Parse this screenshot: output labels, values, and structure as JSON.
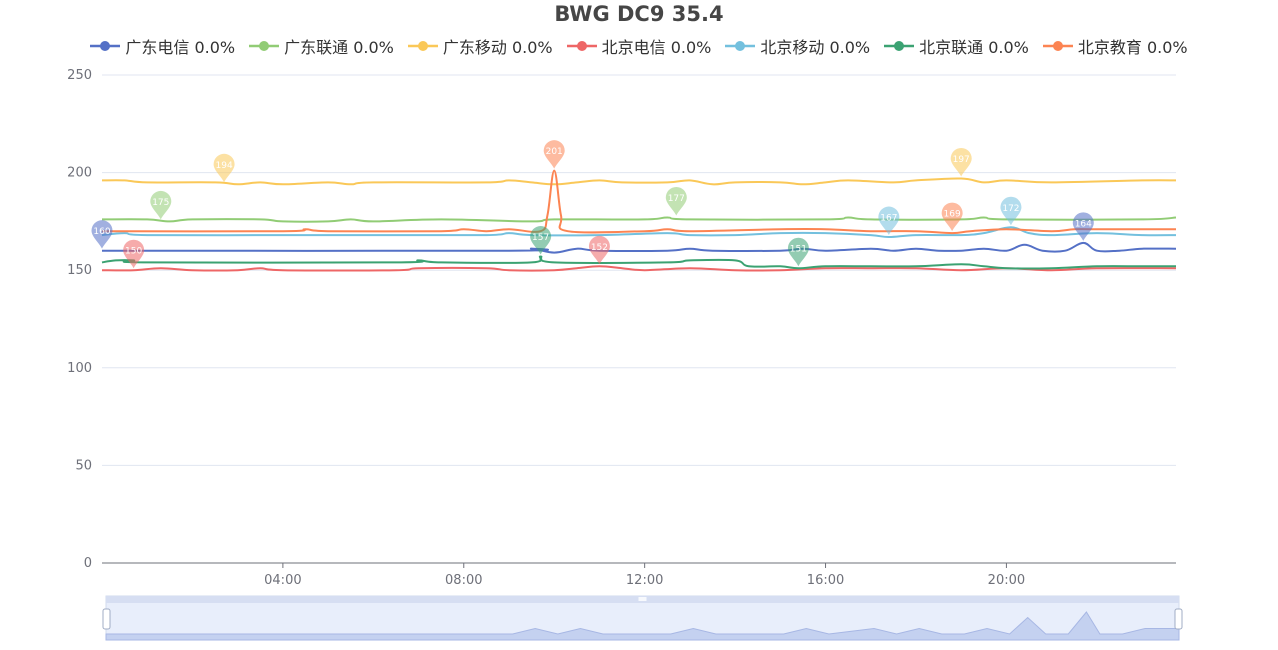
{
  "chart_data": {
    "type": "line",
    "title": "BWG DC9 35.4",
    "ylim": [
      0,
      250
    ],
    "y_ticks": [
      0,
      50,
      100,
      150,
      200,
      250
    ],
    "x_range_hours": [
      0,
      23.75
    ],
    "x_ticks": [
      "04:00",
      "08:00",
      "12:00",
      "16:00",
      "20:00"
    ],
    "grid": true,
    "legend_position": "top-center",
    "has_data_zoom_slider": true,
    "series": [
      {
        "name": "广东电信 0.0%",
        "color": "#5470c6",
        "baseline": 160,
        "points": [
          [
            0,
            160
          ],
          [
            9.0,
            160
          ],
          [
            9.5,
            161
          ],
          [
            10.0,
            159
          ],
          [
            10.5,
            161
          ],
          [
            11.0,
            160
          ],
          [
            12.5,
            160
          ],
          [
            13.0,
            161
          ],
          [
            13.5,
            160
          ],
          [
            15.0,
            160
          ],
          [
            15.5,
            161
          ],
          [
            16.0,
            160
          ],
          [
            17.0,
            161
          ],
          [
            17.5,
            160
          ],
          [
            18.0,
            161
          ],
          [
            18.5,
            160
          ],
          [
            19.0,
            160
          ],
          [
            19.5,
            161
          ],
          [
            20.0,
            160
          ],
          [
            20.4,
            163
          ],
          [
            20.8,
            160
          ],
          [
            21.3,
            160
          ],
          [
            21.7,
            164
          ],
          [
            22.0,
            160
          ],
          [
            22.5,
            160
          ],
          [
            23.0,
            161
          ],
          [
            23.75,
            161
          ]
        ],
        "markers": [
          {
            "x": 0,
            "y": 160,
            "label": "160"
          },
          {
            "x": 21.7,
            "y": 164,
            "label": "164"
          }
        ]
      },
      {
        "name": "广东联通 0.0%",
        "color": "#91cc75",
        "baseline": 176,
        "points": [
          [
            0,
            176
          ],
          [
            1.0,
            176
          ],
          [
            1.5,
            175
          ],
          [
            2.0,
            176
          ],
          [
            3.5,
            176
          ],
          [
            4.0,
            175
          ],
          [
            5.0,
            175
          ],
          [
            5.5,
            176
          ],
          [
            6.0,
            175
          ],
          [
            7.5,
            176
          ],
          [
            9.5,
            175
          ],
          [
            10.0,
            176
          ],
          [
            12.0,
            176
          ],
          [
            12.5,
            177
          ],
          [
            13.0,
            176
          ],
          [
            16.0,
            176
          ],
          [
            16.5,
            177
          ],
          [
            17.0,
            176
          ],
          [
            19.0,
            176
          ],
          [
            19.5,
            177
          ],
          [
            20.0,
            176
          ],
          [
            23.0,
            176
          ],
          [
            23.75,
            177
          ]
        ],
        "markers": [
          {
            "x": 1.3,
            "y": 175,
            "label": "175"
          },
          {
            "x": 12.7,
            "y": 177,
            "label": "177"
          }
        ]
      },
      {
        "name": "广东移动 0.0%",
        "color": "#fac858",
        "baseline": 195,
        "points": [
          [
            0,
            196
          ],
          [
            0.5,
            196
          ],
          [
            1.0,
            195
          ],
          [
            2.5,
            195
          ],
          [
            3.0,
            194
          ],
          [
            3.5,
            195
          ],
          [
            4.0,
            194
          ],
          [
            5.0,
            195
          ],
          [
            5.5,
            194
          ],
          [
            6.0,
            195
          ],
          [
            8.5,
            195
          ],
          [
            9.0,
            196
          ],
          [
            9.5,
            195
          ],
          [
            10.0,
            194
          ],
          [
            10.5,
            195
          ],
          [
            11.0,
            196
          ],
          [
            11.5,
            195
          ],
          [
            12.5,
            195
          ],
          [
            13.0,
            196
          ],
          [
            13.5,
            194
          ],
          [
            14.0,
            195
          ],
          [
            15.0,
            195
          ],
          [
            15.5,
            194
          ],
          [
            16.0,
            195
          ],
          [
            16.5,
            196
          ],
          [
            17.5,
            195
          ],
          [
            18.0,
            196
          ],
          [
            19.0,
            197
          ],
          [
            19.5,
            195
          ],
          [
            20.0,
            196
          ],
          [
            21.0,
            195
          ],
          [
            23.0,
            196
          ],
          [
            23.75,
            196
          ]
        ],
        "markers": [
          {
            "x": 2.7,
            "y": 194,
            "label": "194"
          },
          {
            "x": 19.0,
            "y": 197,
            "label": "197"
          }
        ]
      },
      {
        "name": "北京电信  0.0%",
        "color": "#ee6666",
        "baseline": 150,
        "points": [
          [
            0,
            150
          ],
          [
            0.7,
            150
          ],
          [
            1.3,
            151
          ],
          [
            2.0,
            150
          ],
          [
            3.0,
            150
          ],
          [
            3.5,
            151
          ],
          [
            4.0,
            150
          ],
          [
            6.5,
            150
          ],
          [
            7.0,
            151
          ],
          [
            8.5,
            151
          ],
          [
            9.0,
            150
          ],
          [
            10.0,
            150
          ],
          [
            10.5,
            151
          ],
          [
            11.0,
            152
          ],
          [
            11.5,
            151
          ],
          [
            12.0,
            150
          ],
          [
            13.0,
            151
          ],
          [
            14.0,
            150
          ],
          [
            15.0,
            150
          ],
          [
            16.0,
            151
          ],
          [
            17.0,
            151
          ],
          [
            18.0,
            151
          ],
          [
            19.0,
            150
          ],
          [
            20.0,
            151
          ],
          [
            21.0,
            150
          ],
          [
            22.0,
            151
          ],
          [
            23.75,
            151
          ]
        ],
        "markers": [
          {
            "x": 0.7,
            "y": 150,
            "label": "150"
          },
          {
            "x": 11.0,
            "y": 152,
            "label": "152"
          }
        ]
      },
      {
        "name": "北京移动 0.0%",
        "color": "#73c0de",
        "baseline": 168,
        "points": [
          [
            0,
            168
          ],
          [
            0.5,
            169
          ],
          [
            1.0,
            168
          ],
          [
            4.0,
            168
          ],
          [
            6.0,
            168
          ],
          [
            8.5,
            168
          ],
          [
            9.0,
            169
          ],
          [
            9.5,
            168
          ],
          [
            11.0,
            168
          ],
          [
            12.5,
            169
          ],
          [
            13.0,
            168
          ],
          [
            14.0,
            168
          ],
          [
            15.0,
            169
          ],
          [
            16.0,
            169
          ],
          [
            17.0,
            168
          ],
          [
            17.4,
            167
          ],
          [
            18.0,
            168
          ],
          [
            19.0,
            168
          ],
          [
            19.5,
            169
          ],
          [
            20.1,
            172
          ],
          [
            20.5,
            169
          ],
          [
            21.0,
            168
          ],
          [
            22.0,
            169
          ],
          [
            23.0,
            168
          ],
          [
            23.75,
            168
          ]
        ],
        "markers": [
          {
            "x": 17.4,
            "y": 167,
            "label": "167"
          },
          {
            "x": 20.1,
            "y": 172,
            "label": "172"
          }
        ]
      },
      {
        "name": "北京联通  0.0%",
        "color": "#3ba272",
        "baseline": 154,
        "points": [
          [
            0,
            154
          ],
          [
            0.3,
            155
          ],
          [
            0.7,
            155
          ],
          [
            1.0,
            154
          ],
          [
            6.5,
            154
          ],
          [
            7.0,
            155
          ],
          [
            7.5,
            154
          ],
          [
            9.5,
            154
          ],
          [
            9.7,
            157
          ],
          [
            10.0,
            154
          ],
          [
            12.5,
            154
          ],
          [
            13.0,
            155
          ],
          [
            14.0,
            155
          ],
          [
            14.3,
            152
          ],
          [
            15.0,
            152
          ],
          [
            15.4,
            151
          ],
          [
            16.0,
            152
          ],
          [
            17.0,
            152
          ],
          [
            18.0,
            152
          ],
          [
            19.0,
            153
          ],
          [
            19.5,
            152
          ],
          [
            20.0,
            151
          ],
          [
            21.0,
            151
          ],
          [
            22.0,
            152
          ],
          [
            23.0,
            152
          ],
          [
            23.75,
            152
          ]
        ],
        "markers": [
          {
            "x": 9.7,
            "y": 157,
            "label": "157"
          },
          {
            "x": 15.4,
            "y": 151,
            "label": "151"
          }
        ]
      },
      {
        "name": "北京教育 0.0%",
        "color": "#fc8452",
        "baseline": 170,
        "points": [
          [
            0,
            170
          ],
          [
            4.0,
            170
          ],
          [
            4.5,
            171
          ],
          [
            5.0,
            170
          ],
          [
            7.5,
            170
          ],
          [
            8.0,
            171
          ],
          [
            8.5,
            170
          ],
          [
            9.0,
            171
          ],
          [
            9.7,
            170
          ],
          [
            9.85,
            178
          ],
          [
            10.0,
            201
          ],
          [
            10.15,
            178
          ],
          [
            10.3,
            170
          ],
          [
            12.0,
            170
          ],
          [
            12.5,
            171
          ],
          [
            13.0,
            170
          ],
          [
            15.0,
            171
          ],
          [
            16.0,
            171
          ],
          [
            17.0,
            170
          ],
          [
            18.0,
            170
          ],
          [
            18.8,
            169
          ],
          [
            19.2,
            170
          ],
          [
            20.0,
            171
          ],
          [
            21.0,
            170
          ],
          [
            21.5,
            171
          ],
          [
            22.0,
            171
          ],
          [
            23.75,
            171
          ]
        ],
        "markers": [
          {
            "x": 10.0,
            "y": 201,
            "label": "201"
          },
          {
            "x": 18.8,
            "y": 169,
            "label": "169"
          }
        ]
      }
    ]
  }
}
